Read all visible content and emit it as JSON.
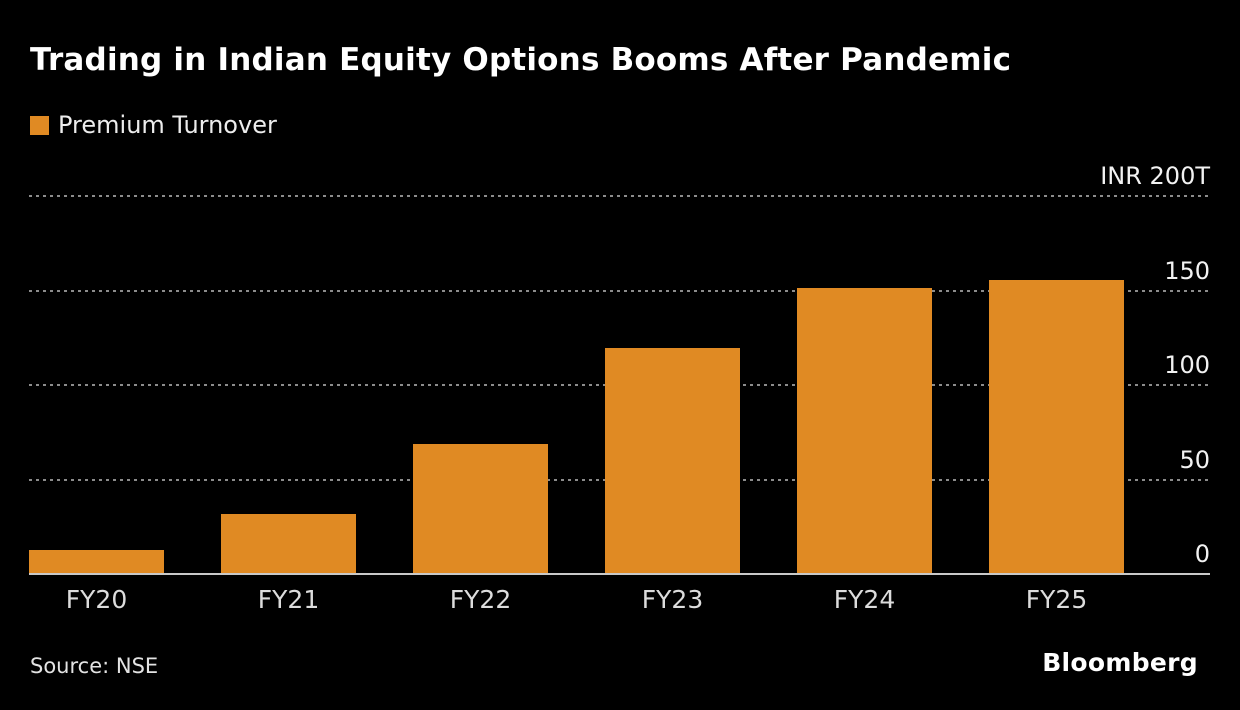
{
  "title": "Trading in Indian Equity Options Booms After Pandemic",
  "legend": {
    "label": "Premium Turnover"
  },
  "footer": {
    "source": "Source: NSE",
    "branding": "Bloomberg"
  },
  "colors": {
    "background": "#000000",
    "bar": "#E08A23",
    "grid": "#8C8C8C",
    "baseline": "#C9C9C9",
    "title_text": "#FFFFFF",
    "tick_text": "#F2F2F2"
  },
  "chart_data": {
    "type": "bar",
    "title": "Trading in Indian Equity Options Booms After Pandemic",
    "categories": [
      "FY20",
      "FY21",
      "FY22",
      "FY23",
      "FY24",
      "FY25"
    ],
    "series": [
      {
        "name": "Premium Turnover",
        "values": [
          12,
          31,
          68,
          119,
          151,
          155
        ]
      }
    ],
    "y_ticks": [
      {
        "value": 200,
        "label": "INR 200T"
      },
      {
        "value": 150,
        "label": "150"
      },
      {
        "value": 100,
        "label": "100"
      },
      {
        "value": 50,
        "label": "50"
      },
      {
        "value": 0,
        "label": "0"
      }
    ],
    "ylim": [
      0,
      200
    ],
    "grid": "horizontal-dashed",
    "legend_position": "top-left",
    "source": "NSE"
  }
}
